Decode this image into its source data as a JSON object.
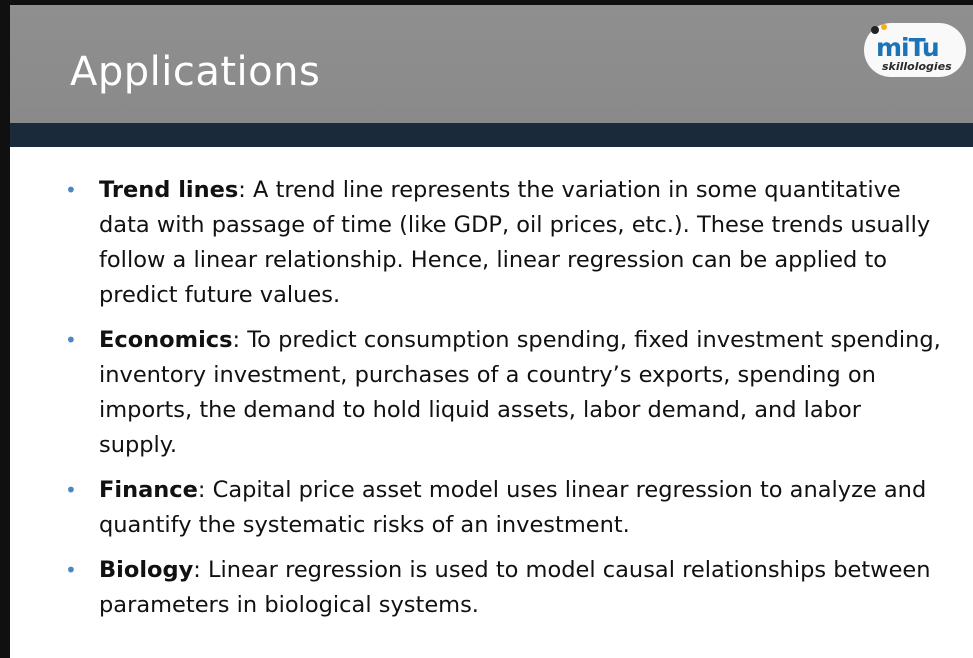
{
  "slide": {
    "title": "Applications",
    "logo": {
      "brand": "miTu",
      "tagline": "skillologies"
    },
    "bullets": [
      {
        "term": "Trend lines",
        "text": ": A trend line represents the variation in some quantitative data with passage of time (like GDP, oil prices, etc.). These trends usually follow a linear relationship. Hence, linear regression can be applied to predict future values."
      },
      {
        "term": "Economics",
        "text": ": To predict consumption spending, fixed investment spending, inventory investment, purchases of a country’s exports, spending on imports, the demand to hold liquid assets, labor demand, and labor supply."
      },
      {
        "term": "Finance",
        "text": ": Capital price asset model uses linear regression to analyze and quantify the systematic risks of an investment."
      },
      {
        "term": "Biology",
        "text": ": Linear regression is used to model causal relationships between parameters in biological systems."
      }
    ],
    "bullet_symbol": "•",
    "colors": {
      "header": "#8f8f8f",
      "bar": "#1b2a3a",
      "bullet": "#4b88c2",
      "logo": "#1c74b8"
    }
  }
}
